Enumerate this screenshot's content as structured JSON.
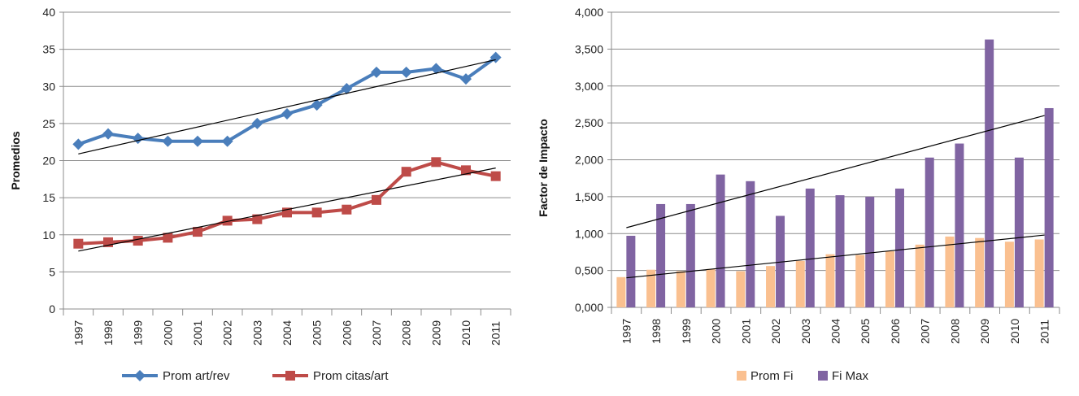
{
  "chart_data": [
    {
      "type": "line",
      "title": "",
      "xlabel": "",
      "ylabel": "Promedios",
      "ylim": [
        0,
        40
      ],
      "yticks": [
        "0",
        "5",
        "10",
        "15",
        "20",
        "25",
        "30",
        "35",
        "40"
      ],
      "categories": [
        "1997",
        "1998",
        "1999",
        "2000",
        "2001",
        "2002",
        "2003",
        "2004",
        "2005",
        "2006",
        "2007",
        "2008",
        "2009",
        "2010",
        "2011"
      ],
      "grid": true,
      "legend_position": "bottom",
      "series": [
        {
          "name": "Prom art/rev",
          "color": "#4a7ebb",
          "marker": "diamond",
          "values": [
            22.2,
            23.6,
            23.0,
            22.6,
            22.6,
            22.6,
            25.0,
            26.3,
            27.5,
            29.7,
            31.9,
            31.9,
            32.4,
            31.0,
            33.9
          ],
          "trend": [
            20.9,
            33.6
          ]
        },
        {
          "name": "Prom citas/art",
          "color": "#be4b48",
          "marker": "square",
          "values": [
            8.8,
            9.0,
            9.2,
            9.6,
            10.4,
            11.9,
            12.1,
            13.0,
            13.0,
            13.4,
            14.7,
            18.5,
            19.8,
            18.7,
            17.9
          ],
          "trend": [
            7.8,
            19.0
          ]
        }
      ]
    },
    {
      "type": "bar",
      "title": "",
      "xlabel": "",
      "ylabel": "Factor de Impacto",
      "ylim": [
        0,
        4
      ],
      "yticks": [
        "0,000",
        "0,500",
        "1,000",
        "1,500",
        "2,000",
        "2,500",
        "3,000",
        "3,500",
        "4,000"
      ],
      "categories": [
        "1997",
        "1998",
        "1999",
        "2000",
        "2001",
        "2002",
        "2003",
        "2004",
        "2005",
        "2006",
        "2007",
        "2008",
        "2009",
        "2010",
        "2011"
      ],
      "grid": true,
      "legend_position": "bottom",
      "series": [
        {
          "name": "Prom Fi",
          "color": "#fac090",
          "values": [
            0.41,
            0.51,
            0.49,
            0.52,
            0.49,
            0.56,
            0.63,
            0.72,
            0.71,
            0.76,
            0.85,
            0.96,
            0.94,
            0.89,
            0.92
          ],
          "trend": [
            0.4,
            0.98
          ]
        },
        {
          "name": "Fi Max",
          "color": "#8064a2",
          "values": [
            0.97,
            1.4,
            1.4,
            1.8,
            1.71,
            1.24,
            1.61,
            1.52,
            1.5,
            1.61,
            2.03,
            2.22,
            3.63,
            2.03,
            2.7
          ],
          "trend": [
            1.08,
            2.6
          ]
        }
      ]
    }
  ]
}
